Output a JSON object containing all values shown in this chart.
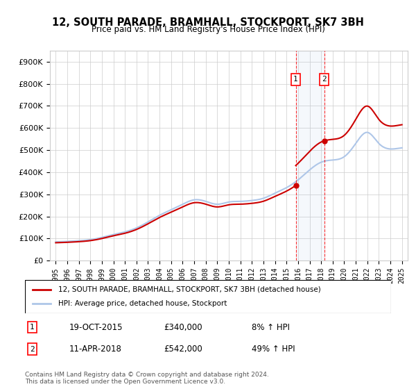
{
  "title": "12, SOUTH PARADE, BRAMHALL, STOCKPORT, SK7 3BH",
  "subtitle": "Price paid vs. HM Land Registry's House Price Index (HPI)",
  "years": [
    1995,
    1996,
    1997,
    1998,
    1999,
    2000,
    2001,
    2002,
    2003,
    2004,
    2005,
    2006,
    2007,
    2008,
    2009,
    2010,
    2011,
    2012,
    2013,
    2014,
    2015,
    2016,
    2017,
    2018,
    2019,
    2020,
    2021,
    2022,
    2023,
    2024,
    2025
  ],
  "hpi_values": [
    85000,
    87000,
    90000,
    95000,
    105000,
    118000,
    130000,
    148000,
    175000,
    205000,
    230000,
    255000,
    275000,
    268000,
    255000,
    265000,
    268000,
    272000,
    282000,
    305000,
    330000,
    365000,
    410000,
    445000,
    455000,
    470000,
    530000,
    580000,
    530000,
    505000,
    510000
  ],
  "hpi_color": "#aec6e8",
  "price_paid_years": [
    2015.8,
    2018.27
  ],
  "price_paid_values": [
    340000,
    542000
  ],
  "price_paid_color": "#cc0000",
  "hpi_line_color": "#aec6e8",
  "grid_color": "#cccccc",
  "background_color": "#ffffff",
  "ylim": [
    0,
    950000
  ],
  "yticks": [
    0,
    100000,
    200000,
    300000,
    400000,
    500000,
    600000,
    700000,
    800000,
    900000
  ],
  "ytick_labels": [
    "£0",
    "£100K",
    "£200K",
    "£300K",
    "£400K",
    "£500K",
    "£600K",
    "£700K",
    "£800K",
    "£900K"
  ],
  "sale1_year": 2015.8,
  "sale1_value": 340000,
  "sale1_label": "1",
  "sale1_date": "19-OCT-2015",
  "sale1_price": "£340,000",
  "sale1_hpi": "8% ↑ HPI",
  "sale2_year": 2018.27,
  "sale2_value": 542000,
  "sale2_label": "2",
  "sale2_date": "11-APR-2018",
  "sale2_price": "£542,000",
  "sale2_hpi": "49% ↑ HPI",
  "legend_label1": "12, SOUTH PARADE, BRAMHALL, STOCKPORT, SK7 3BH (detached house)",
  "legend_label2": "HPI: Average price, detached house, Stockport",
  "footer": "Contains HM Land Registry data © Crown copyright and database right 2024.\nThis data is licensed under the Open Government Licence v3.0."
}
